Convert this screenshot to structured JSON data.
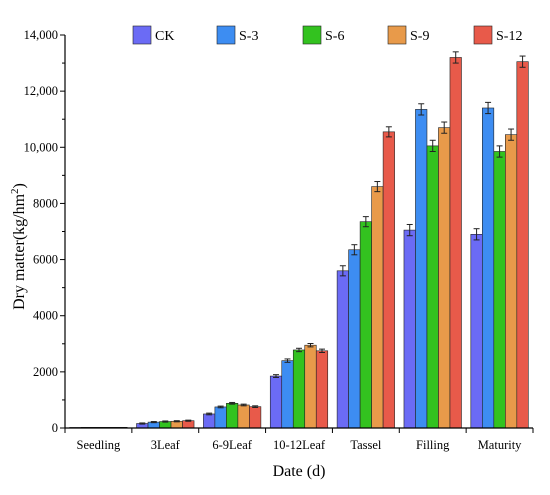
{
  "chart_data": {
    "type": "bar",
    "xlabel": "Date (d)",
    "ylabel_main": "Dry matter(kg/hm",
    "ylabel_sup": "2",
    "ylabel_close": ")",
    "ylim": [
      0,
      14000
    ],
    "yticks": [
      0,
      2000,
      4000,
      6000,
      8000,
      10000,
      12000,
      14000
    ],
    "ytick_labels": [
      "0",
      "2000",
      "4000",
      "6000",
      "8000",
      "10,000",
      "12,000",
      "14,000"
    ],
    "categories": [
      "Seedling",
      "3Leaf",
      "6-9Leaf",
      "10-12Leaf",
      "Tassel",
      "Filling",
      "Maturity"
    ],
    "legend_position": "top-right",
    "grid": false,
    "series": [
      {
        "name": "CK",
        "color": "#6b6bf5",
        "values": [
          20,
          160,
          500,
          1850,
          5600,
          7050,
          6900
        ],
        "errors": [
          0,
          20,
          30,
          50,
          180,
          200,
          200
        ]
      },
      {
        "name": "S-3",
        "color": "#3d8df2",
        "values": [
          25,
          210,
          750,
          2400,
          6350,
          11350,
          11400
        ],
        "errors": [
          0,
          20,
          30,
          60,
          180,
          200,
          200
        ]
      },
      {
        "name": "S-6",
        "color": "#33c21f",
        "values": [
          25,
          230,
          880,
          2780,
          7350,
          10050,
          9850
        ],
        "errors": [
          0,
          20,
          30,
          60,
          180,
          200,
          200
        ]
      },
      {
        "name": "S-9",
        "color": "#e89a4a",
        "values": [
          25,
          240,
          820,
          2950,
          8600,
          10700,
          10450
        ],
        "errors": [
          0,
          20,
          30,
          60,
          180,
          200,
          200
        ]
      },
      {
        "name": "S-12",
        "color": "#e85a4a",
        "values": [
          25,
          260,
          760,
          2750,
          10550,
          13200,
          13050
        ],
        "errors": [
          0,
          20,
          30,
          60,
          180,
          200,
          200
        ]
      }
    ]
  }
}
